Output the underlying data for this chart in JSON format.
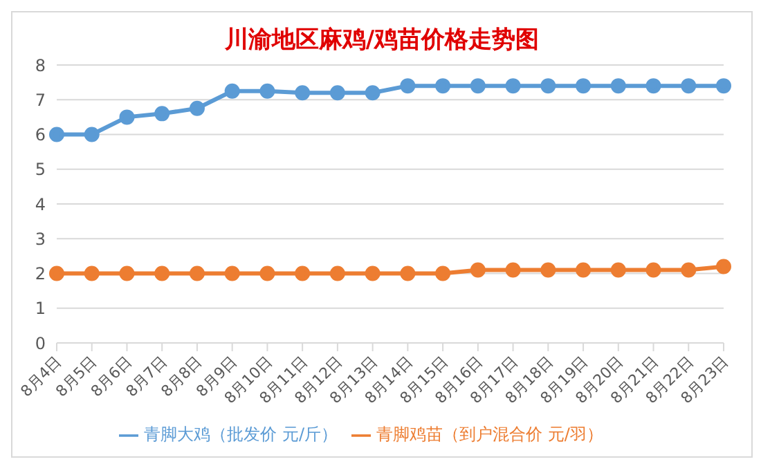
{
  "chart_data": {
    "type": "line",
    "title": "川渝地区麻鸡/鸡苗价格走势图",
    "categories": [
      "8月4日",
      "8月5日",
      "8月6日",
      "8月7日",
      "8月8日",
      "8月9日",
      "8月10日",
      "8月11日",
      "8月12日",
      "8月13日",
      "8月14日",
      "8月15日",
      "8月16日",
      "8月17日",
      "8月18日",
      "8月19日",
      "8月20日",
      "8月21日",
      "8月22日",
      "8月23日"
    ],
    "series": [
      {
        "name": "青脚大鸡（批发价 元/斤）",
        "color": "#5b9bd5",
        "values": [
          6,
          6,
          6.5,
          6.6,
          6.75,
          7.25,
          7.25,
          7.2,
          7.2,
          7.2,
          7.4,
          7.4,
          7.4,
          7.4,
          7.4,
          7.4,
          7.4,
          7.4,
          7.4,
          7.4
        ]
      },
      {
        "name": "青脚鸡苗（到户混合价 元/羽）",
        "color": "#ed7d31",
        "values": [
          2,
          2,
          2,
          2,
          2,
          2,
          2,
          2,
          2,
          2,
          2,
          2,
          2.1,
          2.1,
          2.1,
          2.1,
          2.1,
          2.1,
          2.1,
          2.2
        ]
      }
    ],
    "ylim": [
      0,
      8
    ],
    "yticks": [
      0,
      1,
      2,
      3,
      4,
      5,
      6,
      7,
      8
    ],
    "grid": "y",
    "legend": "bottom",
    "marker": "circle",
    "line_style": "solid"
  }
}
